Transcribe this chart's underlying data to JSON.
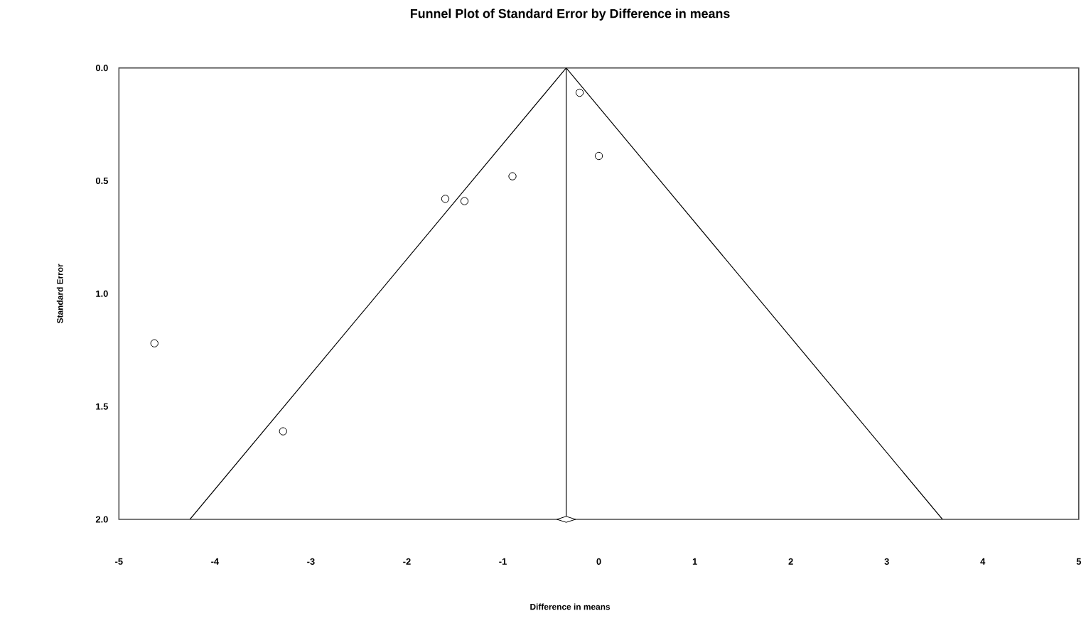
{
  "chart_data": {
    "type": "scatter",
    "title": "Funnel Plot of Standard Error by Difference in means",
    "xlabel": "Difference in means",
    "ylabel": "Standard Error",
    "xlim": [
      -5,
      5
    ],
    "ylim": [
      2,
      0
    ],
    "xticks": [
      -5,
      -4,
      -3,
      -2,
      -1,
      0,
      1,
      2,
      3,
      4,
      5
    ],
    "yticks": [
      {
        "value": 0,
        "label": "0.0"
      },
      {
        "value": 0.5,
        "label": "0.5"
      },
      {
        "value": 1,
        "label": "1.0"
      },
      {
        "value": 1.5,
        "label": "1.5"
      },
      {
        "value": 2,
        "label": "2.0"
      }
    ],
    "series": [
      {
        "marker": "circle",
        "color": "#000000",
        "x": [
          -4.63,
          -3.29,
          -1.6,
          -1.4,
          -0.9,
          -0.2,
          0.0
        ],
        "values": [
          1.22,
          1.61,
          0.58,
          0.59,
          0.48,
          0.11,
          0.39
        ]
      },
      {
        "type": "line",
        "marker": "none",
        "color": "#000000",
        "x": [
          -4.26,
          -0.34,
          3.58
        ],
        "values": [
          2,
          0,
          2
        ]
      },
      {
        "marker": "diamond",
        "color": "#000000",
        "x": [
          -0.34
        ],
        "values": [
          2
        ]
      }
    ],
    "ref_lines": [
      {
        "axis": "x",
        "value": -0.34,
        "color": "#000000"
      }
    ]
  }
}
